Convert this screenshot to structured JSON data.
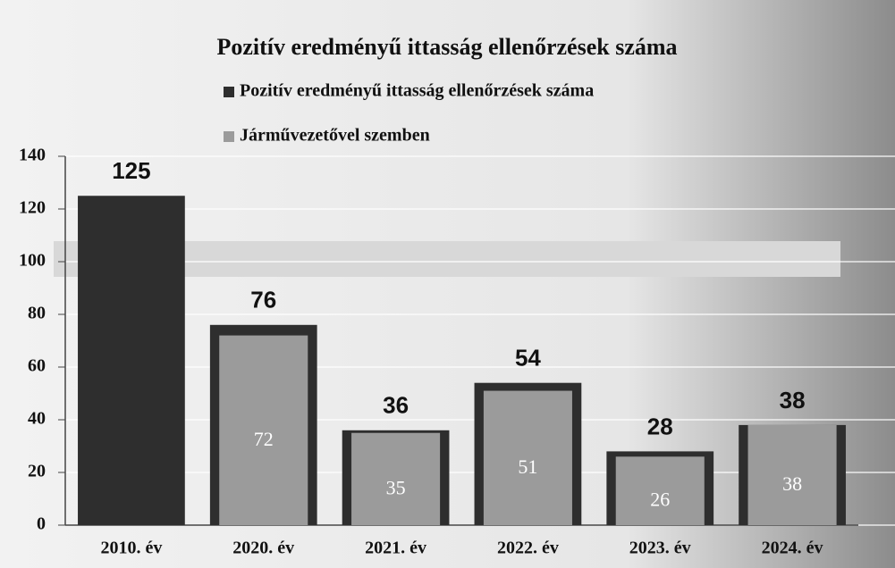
{
  "chart_data": {
    "type": "bar",
    "title": "Pozitív eredményű ittasság ellenőrzések száma",
    "categories": [
      "2010. év",
      "2020. év",
      "2021. év",
      "2022. év",
      "2023. év",
      "2024. év"
    ],
    "series": [
      {
        "name": "Pozitív eredményű ittasság ellenőrzések száma",
        "color": "#2e2e2e",
        "values": [
          125,
          76,
          36,
          54,
          28,
          38
        ]
      },
      {
        "name": "Járművezetővel szemben",
        "color": "#9b9b9b",
        "values": [
          null,
          72,
          35,
          51,
          26,
          38
        ]
      }
    ],
    "ylim": [
      0,
      140
    ],
    "yticks": [
      0,
      20,
      40,
      60,
      80,
      100,
      120,
      140
    ],
    "grid": true
  }
}
